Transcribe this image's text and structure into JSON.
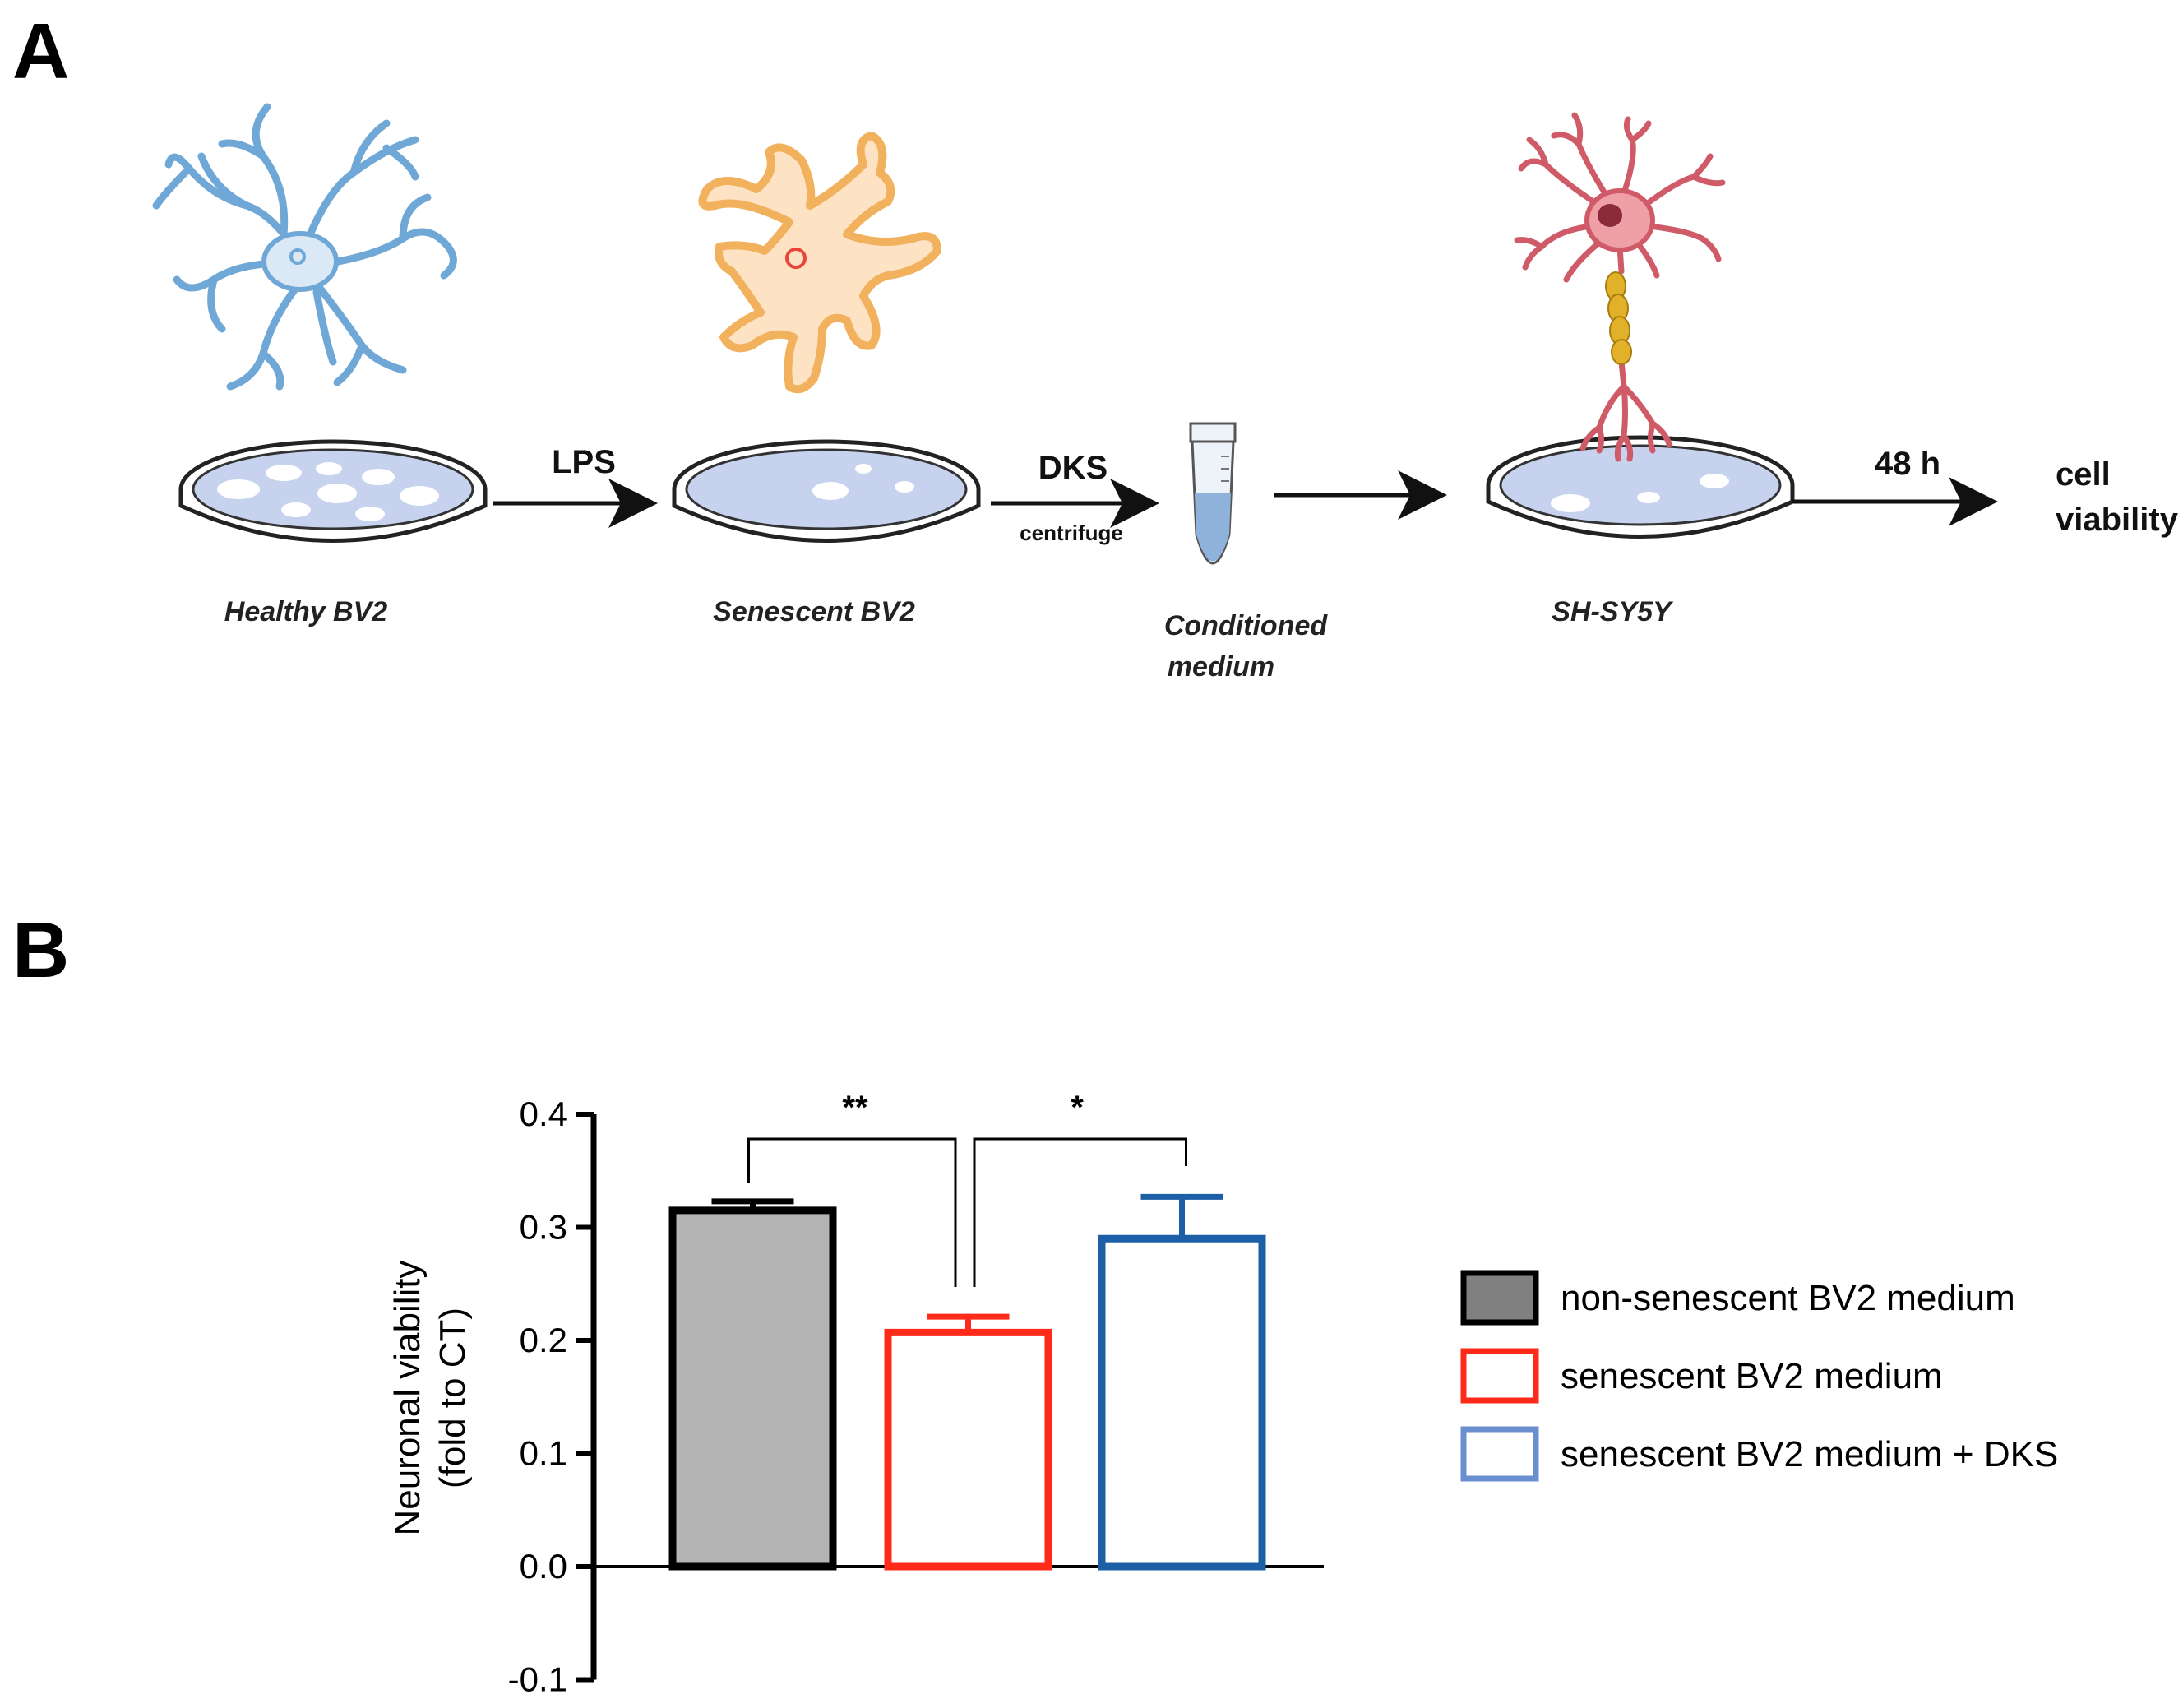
{
  "panel_a": {
    "letter": "A",
    "steps": {
      "healthy": "Healthy BV2",
      "senescent": "Senescent BV2",
      "conditioned_line1": "Conditioned",
      "conditioned_line2": "medium",
      "shsy5y": "SH-SY5Y"
    },
    "arrows": {
      "lps": "LPS",
      "dks": "DKS",
      "centrifuge": "centrifuge",
      "time": "48 h"
    },
    "outcome_line1": "cell",
    "outcome_line2": "viability",
    "colors": {
      "healthy_microglia": "#6fa8d6",
      "senescent_microglia": "#f2b15c",
      "neuron": "#cf5a68",
      "myelin": "#e2b12a",
      "dish_fill": "#c7d3ee",
      "dish_stroke": "#222222"
    }
  },
  "panel_b": {
    "letter": "B",
    "ylabel_line1": "Neuronal viability",
    "ylabel_line2": "(fold to CT)",
    "legend": [
      {
        "label": "non-senescent BV2 medium",
        "fill": "#808080",
        "stroke": "#000000"
      },
      {
        "label": "senescent BV2 medium",
        "fill": "#ffffff",
        "stroke": "#ff2a1a"
      },
      {
        "label": "senescent BV2 medium + DKS",
        "fill": "#ffffff",
        "stroke": "#6a8fd0"
      }
    ],
    "significance": [
      {
        "text": "**",
        "between": [
          0,
          1
        ]
      },
      {
        "text": "*",
        "between": [
          1,
          2
        ]
      }
    ]
  },
  "chart_data": {
    "type": "bar",
    "categories": [
      "non-senescent BV2 medium",
      "senescent BV2 medium",
      "senescent BV2 medium + DKS"
    ],
    "values": [
      0.315,
      0.207,
      0.29
    ],
    "errors": [
      0.008,
      0.014,
      0.037
    ],
    "ylabel": "Neuronal viability (fold to CT)",
    "ylim": [
      -0.1,
      0.4
    ],
    "yticks": [
      "0.4",
      "0.3",
      "0.2",
      "0.1",
      "0.0",
      "-0.1"
    ],
    "ytick_values": [
      0.4,
      0.3,
      0.2,
      0.1,
      0.0,
      -0.1
    ],
    "bar_colors": [
      {
        "fill": "#b4b4b4",
        "stroke": "#000000"
      },
      {
        "fill": "#ffffff",
        "stroke": "#ff2a1a"
      },
      {
        "fill": "#ffffff",
        "stroke": "#1d5fa6"
      }
    ],
    "grid": false,
    "legend_position": "right"
  }
}
